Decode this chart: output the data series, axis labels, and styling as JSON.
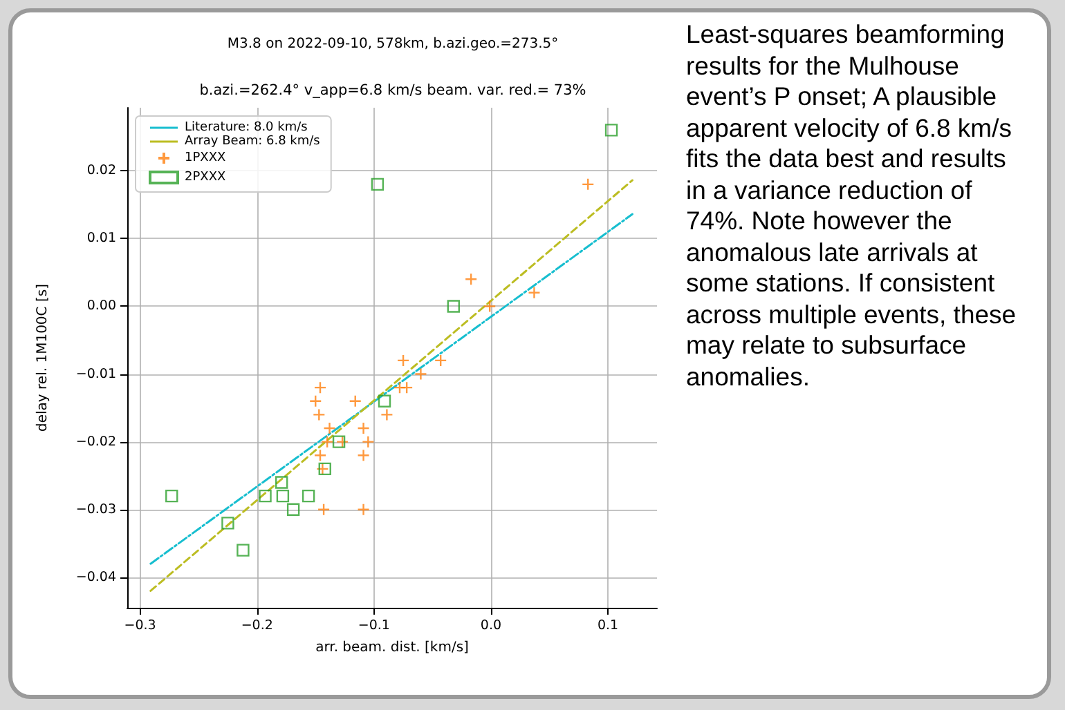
{
  "chart_data": {
    "type": "scatter",
    "title": "M3.8 on 2022-09-10, 578km, b.azi.geo.=273.5°",
    "subtitle": "b.azi.=262.4° v_app=6.8 km/s beam. var. red.= 73%",
    "xlabel": "arr. beam. dist. [km/s]",
    "ylabel": "delay rel. 1M100C [s]",
    "annotations": [
      "Least-squares beamforming results for the Mulhouse event’s P onset; A plausible apparent velocity of 6.8 km/s fits the data best and results in a variance reduction of 74%. Note however the anomalous late arrivals at some stations. If consistent across multiple events, these may relate to subsurface anomalies."
    ],
    "series": [
      {
        "name": "Literature: 8.0 km/s",
        "type": "line",
        "color": "#17becf",
        "line_style": "dashdot",
        "marker": "none",
        "x": [
          -0.291,
          0.121
        ],
        "values": [
          -0.038,
          0.0136
        ]
      },
      {
        "name": "Array Beam: 6.8 km/s",
        "type": "line",
        "color": "#bcbd22",
        "line_style": "dashed",
        "marker": "none",
        "x": [
          -0.291,
          0.121
        ],
        "values": [
          -0.042,
          0.0186
        ]
      },
      {
        "name": "1PXXX",
        "color": "#ff7f0e",
        "marker": "cross",
        "x": [
          0.083,
          -0.017,
          0.037,
          -0.001,
          -0.075,
          -0.043,
          -0.06,
          -0.078,
          -0.072,
          -0.116,
          -0.089,
          -0.109,
          -0.105,
          -0.109,
          -0.109,
          -0.127,
          -0.146,
          -0.15,
          -0.147,
          -0.138,
          -0.14,
          -0.146,
          -0.144,
          -0.143
        ],
        "values": [
          0.018,
          0.004,
          0.002,
          0.0,
          -0.008,
          -0.008,
          -0.01,
          -0.012,
          -0.012,
          -0.014,
          -0.016,
          -0.018,
          -0.02,
          -0.022,
          -0.03,
          -0.02,
          -0.012,
          -0.014,
          -0.016,
          -0.018,
          -0.02,
          -0.022,
          -0.024,
          -0.03
        ]
      },
      {
        "name": "2PXXX",
        "color": "#2ca02c",
        "marker": "square",
        "x": [
          0.103,
          -0.097,
          -0.032,
          -0.091,
          -0.13,
          -0.142,
          -0.273,
          -0.193,
          -0.179,
          -0.178,
          -0.156,
          -0.169,
          -0.225,
          -0.212
        ],
        "values": [
          0.026,
          0.018,
          0.0,
          -0.014,
          -0.02,
          -0.024,
          -0.028,
          -0.028,
          -0.026,
          -0.028,
          -0.028,
          -0.03,
          -0.032,
          -0.036
        ]
      }
    ],
    "xlim": [
      -0.311,
      0.142
    ],
    "ylim": [
      -0.0445,
      0.0293
    ],
    "xticks": [
      {
        "value": -0.3,
        "label": "−0.3"
      },
      {
        "value": -0.2,
        "label": "−0.2"
      },
      {
        "value": -0.1,
        "label": "−0.1"
      },
      {
        "value": 0,
        "label": "0.0"
      },
      {
        "value": 0.1,
        "label": "0.1"
      }
    ],
    "yticks": [
      {
        "value": -0.04,
        "label": "−0.04"
      },
      {
        "value": -0.03,
        "label": "−0.03"
      },
      {
        "value": -0.02,
        "label": "−0.02"
      },
      {
        "value": -0.01,
        "label": "−0.01"
      },
      {
        "value": 0,
        "label": "0.00"
      },
      {
        "value": 0.01,
        "label": "0.01"
      },
      {
        "value": 0.02,
        "label": "0.02"
      }
    ],
    "grid": true,
    "legend": "top left"
  }
}
